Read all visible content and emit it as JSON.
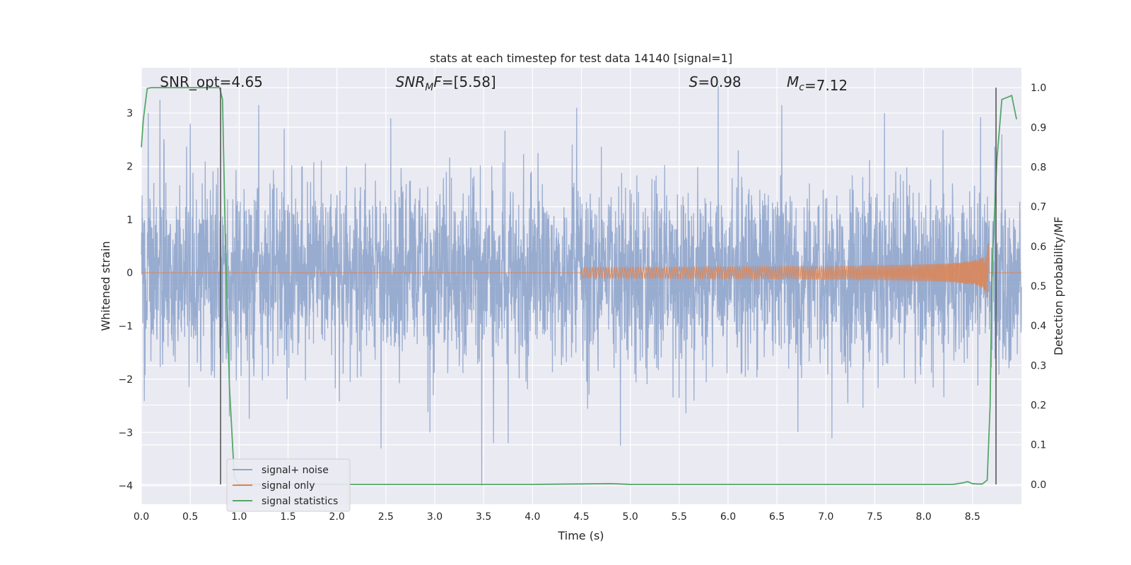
{
  "chart_data": {
    "type": "line",
    "title": "stats at each timestep for test data 14140 [signal=1]",
    "xlabel": "Time (s)",
    "ylabel": "Whitened strain",
    "y2label": "Detection probability/MF",
    "xlim": [
      0,
      9.0
    ],
    "ylim": [
      -4.35,
      3.85
    ],
    "y2lim": [
      -0.05,
      1.05
    ],
    "xticks": [
      0.0,
      0.5,
      1.0,
      1.5,
      2.0,
      2.5,
      3.0,
      3.5,
      4.0,
      4.5,
      5.0,
      5.5,
      6.0,
      6.5,
      7.0,
      7.5,
      8.0,
      8.5
    ],
    "xtick_labels": [
      "0.0",
      "0.5",
      "1.0",
      "1.5",
      "2.0",
      "2.5",
      "3.0",
      "3.5",
      "4.0",
      "4.5",
      "5.0",
      "5.5",
      "6.0",
      "6.5",
      "7.0",
      "7.5",
      "8.0",
      "8.5"
    ],
    "yticks": [
      -4,
      -3,
      -2,
      -1,
      0,
      1,
      2,
      3
    ],
    "ytick_labels": [
      "−4",
      "−3",
      "−2",
      "−1",
      "0",
      "1",
      "2",
      "3"
    ],
    "y2ticks": [
      0.0,
      0.1,
      0.2,
      0.3,
      0.4,
      0.5,
      0.6,
      0.7,
      0.8,
      0.9,
      1.0
    ],
    "y2tick_labels": [
      "0.0",
      "0.1",
      "0.2",
      "0.3",
      "0.4",
      "0.5",
      "0.6",
      "0.7",
      "0.8",
      "0.9",
      "1.0"
    ],
    "grid": true,
    "legend_position": "bottom-left",
    "annotations": [
      {
        "id": "snr-opt",
        "x": 0.19,
        "text_plain": "SNR_opt=4.65"
      },
      {
        "id": "snr-mf",
        "x": 2.6,
        "text_italic": "SNR",
        "sub": "M",
        "text_italic2": "F",
        "text_plain": "=[5.58]"
      },
      {
        "id": "s-stat",
        "x": 5.6,
        "text_italic": "S",
        "text_plain": "=0.98"
      },
      {
        "id": "chirp-mass",
        "x": 6.6,
        "text_italic": "M",
        "sub": "c",
        "text_plain": "=7.12"
      }
    ],
    "vlines": [
      0.81,
      8.74
    ],
    "series": [
      {
        "name": "signal+ noise",
        "color": "#8fa5cc",
        "kind": "noise",
        "sigma": 0.85,
        "peak_times": [
          0.07,
          0.19,
          0.5,
          0.9,
          1.2,
          2.45,
          2.55,
          2.95,
          3.48,
          3.6,
          3.75,
          4.45,
          4.9,
          5.9,
          6.55,
          7.6,
          8.8
        ],
        "peak_values": [
          3.0,
          3.25,
          2.8,
          -2.7,
          3.15,
          -3.3,
          2.9,
          -3.0,
          -4.0,
          -3.2,
          -3.2,
          3.1,
          -3.25,
          3.5,
          3.15,
          3.0,
          2.6
        ]
      },
      {
        "name": "signal only",
        "color": "#dd8452",
        "kind": "chirp",
        "t_start": 4.5,
        "t_coalescence": 8.66,
        "t_end": 9.0,
        "peak_amplitude": 0.6
      },
      {
        "name": "signal statistics",
        "color": "#55a868",
        "kind": "line",
        "axis": "y2",
        "x": [
          0.0,
          0.02,
          0.06,
          0.1,
          0.2,
          0.4,
          0.6,
          0.75,
          0.8,
          0.83,
          0.86,
          0.9,
          0.95,
          1.0,
          2.0,
          3.0,
          4.0,
          4.8,
          5.0,
          6.0,
          7.0,
          8.0,
          8.3,
          8.4,
          8.45,
          8.5,
          8.55,
          8.6,
          8.65,
          8.68,
          8.7,
          8.75,
          8.8,
          8.85,
          8.9,
          8.95
        ],
        "y": [
          0.85,
          0.92,
          0.998,
          1.0,
          1.0,
          1.0,
          1.0,
          1.0,
          1.0,
          0.97,
          0.6,
          0.25,
          0.02,
          0.0,
          0.0,
          0.0,
          0.0,
          0.002,
          0.0,
          0.0,
          0.0,
          0.0,
          0.0,
          0.004,
          0.007,
          0.002,
          0.001,
          0.001,
          0.011,
          0.2,
          0.55,
          0.82,
          0.97,
          0.975,
          0.98,
          0.92
        ]
      }
    ]
  }
}
